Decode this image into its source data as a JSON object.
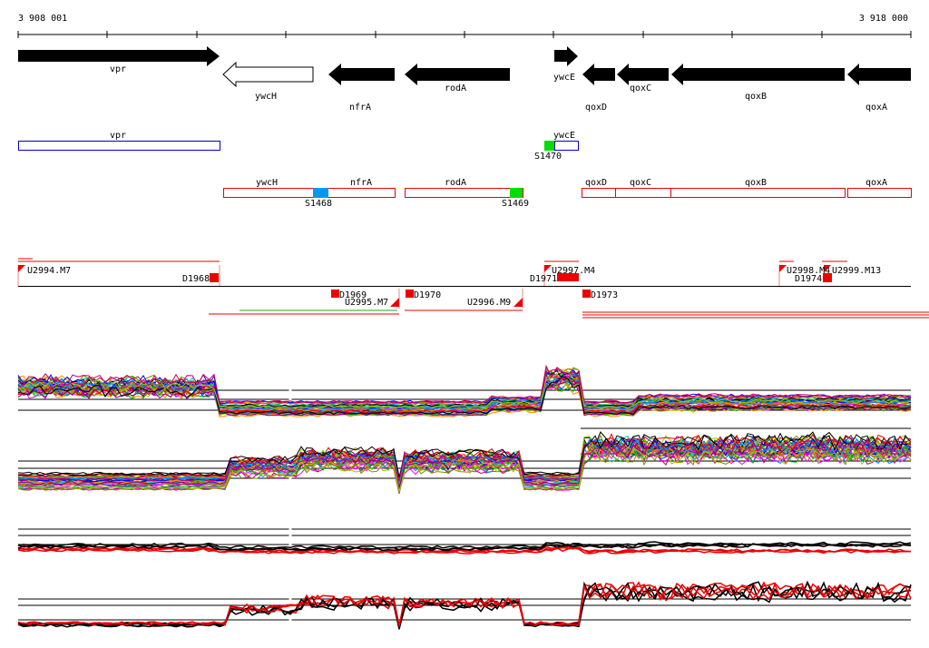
{
  "axis": {
    "start": "3 908 001",
    "end": "3 918 000"
  },
  "genes": [
    "vpr",
    "ywcH",
    "nfrA",
    "rodA",
    "ywcE",
    "qoxD",
    "qoxC",
    "qoxB",
    "qoxA"
  ],
  "transcripts": [
    "vpr",
    "ywcE",
    "ywcH",
    "nfrA",
    "rodA",
    "qoxD",
    "qoxC",
    "qoxB",
    "qoxA"
  ],
  "sites": [
    "S1470",
    "S1468",
    "S1469"
  ],
  "segments": [
    "U2994.M7",
    "D1968",
    "D1969",
    "U2995.M7",
    "D1970",
    "U2996.M9",
    "D1971",
    "U2997.M4",
    "D1973",
    "U2998.M4",
    "D1974",
    "U2999.M13"
  ]
}
